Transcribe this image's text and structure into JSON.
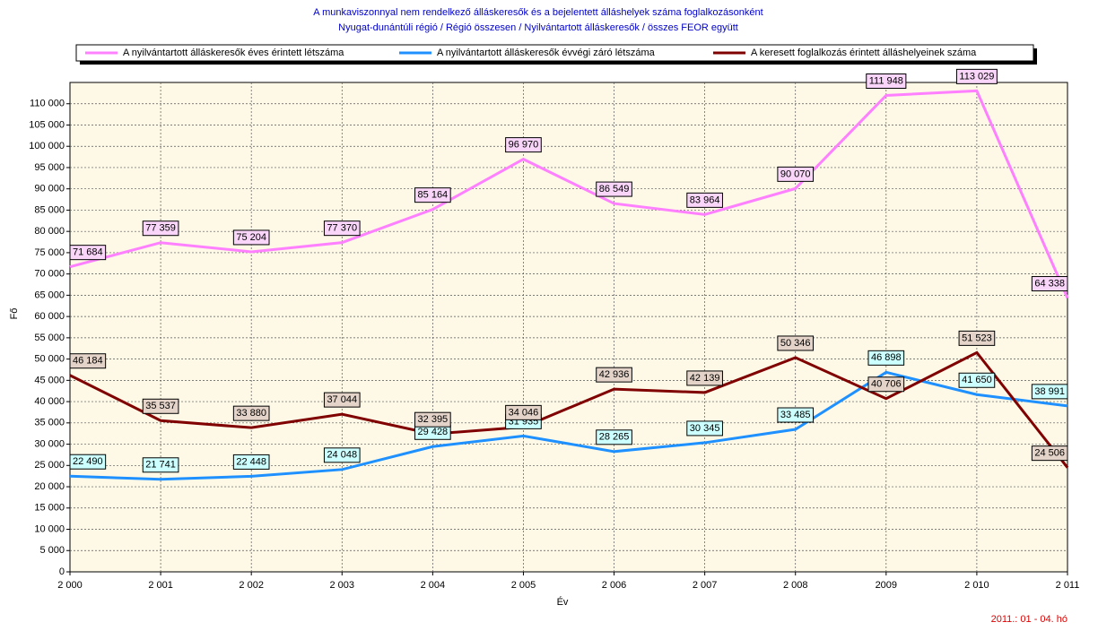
{
  "chart_data": {
    "type": "line",
    "title": "A munkaviszonnyal nem rendelkező álláskeresők és a bejelentett álláshelyek száma foglalkozásonként",
    "subtitle": "Nyugat-dunántúli régió / Régió összesen / Nyilvántartott álláskeresők / összes FEOR együtt",
    "xlabel": "Év",
    "ylabel": "Fő",
    "footnote": "2011.: 01 - 04. hó",
    "categories": [
      "2 000",
      "2 001",
      "2 002",
      "2 003",
      "2 004",
      "2 005",
      "2 006",
      "2 007",
      "2 008",
      "2009",
      "2 010",
      "2 011"
    ],
    "series": [
      {
        "name": "A nyilvántartott álláskeresők éves érintett létszáma",
        "color": "#ff80ff",
        "label_fill": "#f9d6f9",
        "values": [
          71684,
          77359,
          75204,
          77370,
          85164,
          96970,
          86549,
          83964,
          90070,
          111948,
          113029,
          64338
        ],
        "value_labels": [
          "71 684",
          "77 359",
          "75 204",
          "77 370",
          "85 164",
          "96 970",
          "86 549",
          "83 964",
          "90 070",
          "111 948",
          "113 029",
          "64 338"
        ]
      },
      {
        "name": "A nyilvántartott álláskeresők évvégi záró létszáma",
        "color": "#1e90ff",
        "label_fill": "#ccffff",
        "values": [
          22490,
          21741,
          22448,
          24048,
          29428,
          31935,
          28265,
          30345,
          33485,
          46898,
          41650,
          38991
        ],
        "value_labels": [
          "22 490",
          "21 741",
          "22 448",
          "24 048",
          "29 428",
          "31 935",
          "28 265",
          "30 345",
          "33 485",
          "46 898",
          "41 650",
          "38 991"
        ]
      },
      {
        "name": "A keresett foglalkozás érintett álláshelyeinek száma",
        "color": "#800000",
        "label_fill": "#e3d3c8",
        "values": [
          46184,
          35537,
          33880,
          37044,
          32395,
          34046,
          42936,
          42139,
          50346,
          40706,
          51523,
          24506
        ],
        "value_labels": [
          "46 184",
          "35 537",
          "33 880",
          "37 044",
          "32 395",
          "34 046",
          "42 936",
          "42 139",
          "50 346",
          "40 706",
          "51 523",
          "24 506"
        ]
      }
    ],
    "ylim": [
      0,
      115000
    ],
    "yticks": [
      0,
      {
        "value": 5000,
        "label": "5 000"
      },
      {
        "value": 10000,
        "label": "10 000"
      },
      {
        "value": 15000,
        "label": "15 000"
      },
      {
        "value": 20000,
        "label": "20 000"
      },
      {
        "value": 25000,
        "label": "25 000"
      },
      {
        "value": 30000,
        "label": "30 000"
      },
      {
        "value": 35000,
        "label": "35 000"
      },
      {
        "value": 40000,
        "label": "40 000"
      },
      {
        "value": 45000,
        "label": "45 000"
      },
      {
        "value": 50000,
        "label": "50 000"
      },
      {
        "value": 55000,
        "label": "55 000"
      },
      {
        "value": 60000,
        "label": "60 000"
      },
      {
        "value": 65000,
        "label": "65 000"
      },
      {
        "value": 70000,
        "label": "70 000"
      },
      {
        "value": 75000,
        "label": "75 000"
      },
      {
        "value": 80000,
        "label": "80 000"
      },
      {
        "value": 85000,
        "label": "85 000"
      },
      {
        "value": 90000,
        "label": "90 000"
      },
      {
        "value": 95000,
        "label": "95 000"
      },
      {
        "value": 100000,
        "label": "100 000"
      },
      {
        "value": 105000,
        "label": "105 000"
      },
      {
        "value": 110000,
        "label": "110 000"
      }
    ],
    "grid": true
  }
}
